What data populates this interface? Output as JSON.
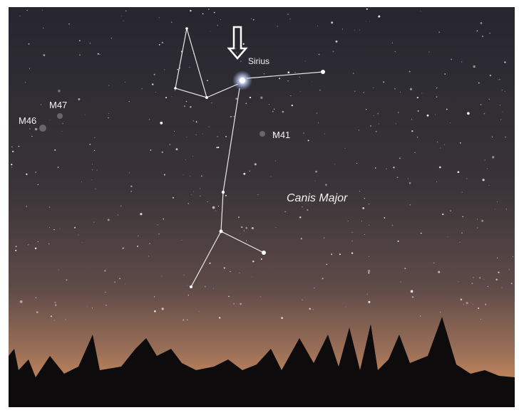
{
  "labels": {
    "sirius": "Sirius",
    "m47": "M47",
    "m46": "M46",
    "m41": "M41",
    "constellation": "Canis Major"
  }
}
